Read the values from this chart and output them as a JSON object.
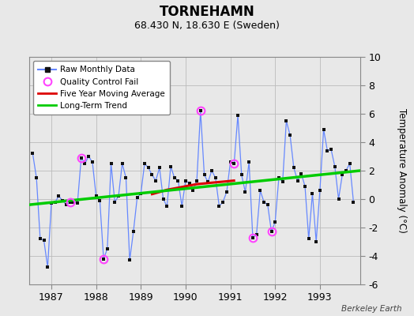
{
  "title": "TORNEHAMN",
  "subtitle": "68.430 N, 18.630 E (Sweden)",
  "ylabel": "Temperature Anomaly (°C)",
  "credit": "Berkeley Earth",
  "background_color": "#e8e8e8",
  "plot_bg_color": "#e8e8e8",
  "ylim": [
    -6,
    10
  ],
  "yticks": [
    -6,
    -4,
    -2,
    0,
    2,
    4,
    6,
    8,
    10
  ],
  "xlim_start": 1986.5,
  "xlim_end": 1993.9,
  "xtick_years": [
    1987,
    1988,
    1989,
    1990,
    1991,
    1992,
    1993
  ],
  "raw_x": [
    1986.583,
    1986.667,
    1986.75,
    1986.833,
    1986.917,
    1987.0,
    1987.083,
    1987.167,
    1987.25,
    1987.333,
    1987.417,
    1987.5,
    1987.583,
    1987.667,
    1987.75,
    1987.833,
    1987.917,
    1988.0,
    1988.083,
    1988.167,
    1988.25,
    1988.333,
    1988.417,
    1988.5,
    1988.583,
    1988.667,
    1988.75,
    1988.833,
    1988.917,
    1989.0,
    1989.083,
    1989.167,
    1989.25,
    1989.333,
    1989.417,
    1989.5,
    1989.583,
    1989.667,
    1989.75,
    1989.833,
    1989.917,
    1990.0,
    1990.083,
    1990.167,
    1990.25,
    1990.333,
    1990.417,
    1990.5,
    1990.583,
    1990.667,
    1990.75,
    1990.833,
    1990.917,
    1991.0,
    1991.083,
    1991.167,
    1991.25,
    1991.333,
    1991.417,
    1991.5,
    1991.583,
    1991.667,
    1991.75,
    1991.833,
    1991.917,
    1992.0,
    1992.083,
    1992.167,
    1992.25,
    1992.333,
    1992.417,
    1992.5,
    1992.583,
    1992.667,
    1992.75,
    1992.833,
    1992.917,
    1993.0,
    1993.083,
    1993.167,
    1993.25,
    1993.333,
    1993.417,
    1993.5,
    1993.583,
    1993.667,
    1993.75
  ],
  "raw_y": [
    3.2,
    1.5,
    -2.8,
    -2.9,
    -4.8,
    -0.3,
    -0.2,
    0.2,
    -0.1,
    -0.4,
    -0.2,
    -0.2,
    -0.3,
    2.9,
    2.5,
    3.0,
    2.6,
    0.2,
    -0.1,
    -4.2,
    -3.5,
    2.5,
    -0.2,
    0.2,
    2.5,
    1.5,
    -4.3,
    -2.3,
    0.1,
    0.4,
    2.5,
    2.2,
    1.7,
    1.3,
    2.2,
    0.0,
    -0.5,
    2.3,
    1.5,
    1.3,
    -0.5,
    1.3,
    1.1,
    0.6,
    1.3,
    6.2,
    1.7,
    1.2,
    2.0,
    1.5,
    -0.5,
    -0.2,
    0.5,
    2.6,
    2.5,
    5.9,
    1.7,
    0.5,
    2.6,
    -2.7,
    -2.5,
    0.6,
    -0.2,
    -0.4,
    -2.3,
    -1.6,
    1.5,
    1.2,
    5.5,
    4.5,
    2.2,
    1.3,
    1.8,
    0.9,
    -2.8,
    0.4,
    -3.0,
    0.6,
    4.9,
    3.4,
    3.5,
    2.3,
    0.0,
    1.7,
    2.0,
    2.5,
    -0.2
  ],
  "qc_fail_x": [
    1987.417,
    1987.667,
    1988.167,
    1990.333,
    1991.083,
    1991.5,
    1991.917
  ],
  "qc_fail_y": [
    -0.2,
    2.9,
    -4.2,
    6.2,
    2.5,
    -2.7,
    -2.3
  ],
  "moving_avg_x": [
    1989.25,
    1989.42,
    1989.58,
    1989.75,
    1989.92,
    1990.08,
    1990.25,
    1990.42,
    1990.58,
    1990.75,
    1990.92,
    1991.08
  ],
  "moving_avg_y": [
    0.35,
    0.5,
    0.65,
    0.75,
    0.85,
    0.95,
    1.05,
    1.1,
    1.15,
    1.2,
    1.25,
    1.3
  ],
  "trend_x": [
    1986.5,
    1993.9
  ],
  "trend_y": [
    -0.4,
    2.0
  ],
  "raw_line_color": "#6688ff",
  "raw_marker_color": "#111111",
  "qc_color": "#ff44ff",
  "moving_avg_color": "#dd0000",
  "trend_color": "#00cc00",
  "grid_color": "#bbbbbb"
}
